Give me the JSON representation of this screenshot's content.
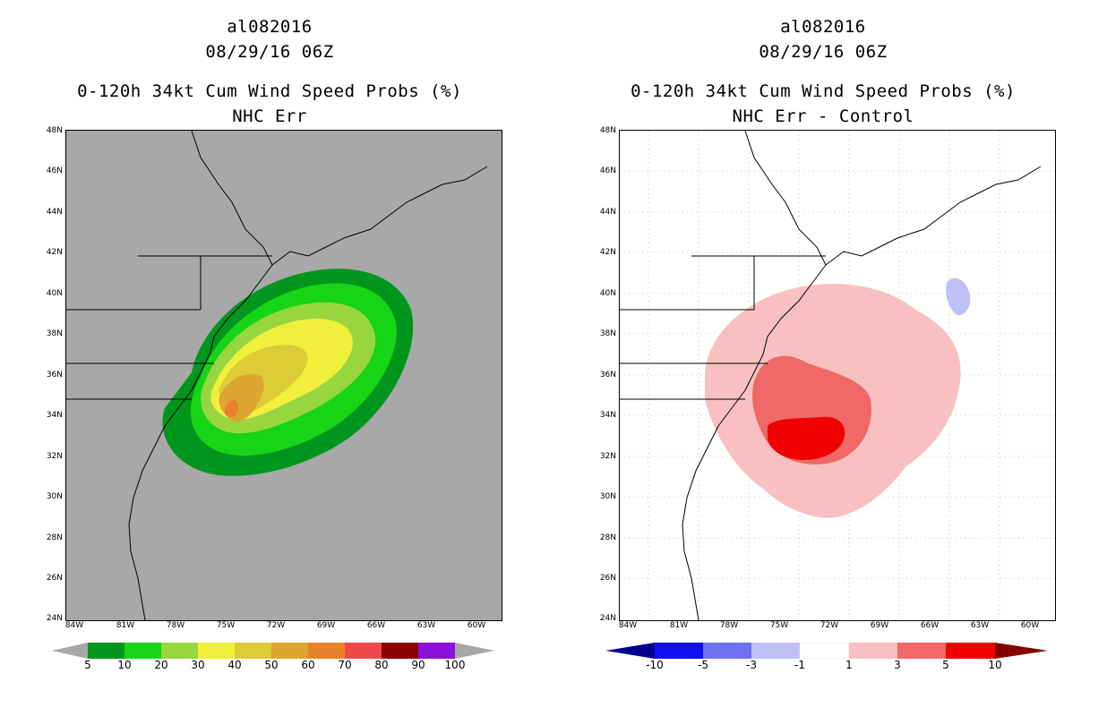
{
  "left": {
    "storm_id": "al082016",
    "datetime": "08/29/16 06Z",
    "title": "0-120h 34kt Cum Wind Speed Probs (%)",
    "subtitle": "NHC Err",
    "background": "#a8a8a8",
    "colorbar": {
      "colors": [
        "#a8a8a8",
        "#00961e",
        "#16d416",
        "#98d640",
        "#f0f03c",
        "#dccc36",
        "#dca630",
        "#e8822a",
        "#f04848",
        "#8a0000",
        "#8b10d8",
        "#a8a8a8"
      ],
      "labels": [
        "5",
        "10",
        "20",
        "30",
        "40",
        "50",
        "60",
        "70",
        "80",
        "90",
        "100"
      ]
    }
  },
  "right": {
    "storm_id": "al082016",
    "datetime": "08/29/16 06Z",
    "title": "0-120h 34kt Cum Wind Speed Probs (%)",
    "subtitle": "NHC Err - Control",
    "background": "#ffffff",
    "colorbar": {
      "colors": [
        "#00008c",
        "#1010f0",
        "#7070f0",
        "#c0c0f4",
        "#ffffff",
        "#f8c0c0",
        "#f06868",
        "#f00000",
        "#820000"
      ],
      "labels": [
        "-10",
        "-5",
        "-3",
        "-1",
        "1",
        "3",
        "5",
        "10"
      ]
    }
  },
  "axes": {
    "lat_labels": [
      "48N",
      "46N",
      "44N",
      "42N",
      "40N",
      "38N",
      "36N",
      "34N",
      "32N",
      "30N",
      "28N",
      "26N",
      "24N"
    ],
    "lon_labels": [
      "84W",
      "81W",
      "78W",
      "75W",
      "72W",
      "69W",
      "66W",
      "63W",
      "60W"
    ],
    "lat_range": [
      24,
      48
    ],
    "lon_range": [
      -85,
      -59
    ]
  }
}
